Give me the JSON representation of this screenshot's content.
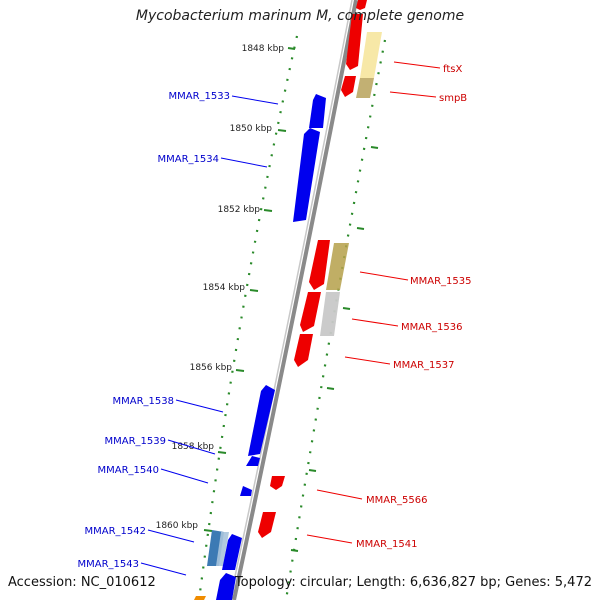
{
  "title": "Mycobacterium marinum M, complete genome",
  "footer": {
    "accession": "Accession: NC_010612",
    "summary": "Topology: circular; Length: 6,636,827 bp; Genes: 5,472"
  },
  "colors": {
    "backbone": "#7f7f7f",
    "tick_dots": "#2a8a2a",
    "minus_strand": "#0000ee",
    "plus_strand": "#ee0000",
    "minus_label": "#0000cc",
    "plus_label": "#cc0000"
  },
  "kbp_labels": [
    "1848 kbp",
    "1850 kbp",
    "1852 kbp",
    "1854 kbp",
    "1856 kbp",
    "1858 kbp",
    "1860 kbp"
  ],
  "genes_minus": [
    "MMAR_1533",
    "MMAR_1534",
    "MMAR_1538",
    "MMAR_1539",
    "MMAR_1540",
    "MMAR_1542",
    "MMAR_1543"
  ],
  "genes_plus": [
    "ftsX",
    "smpB",
    "MMAR_1535",
    "MMAR_1536",
    "MMAR_1537",
    "MMAR_5566",
    "MMAR_1541"
  ]
}
